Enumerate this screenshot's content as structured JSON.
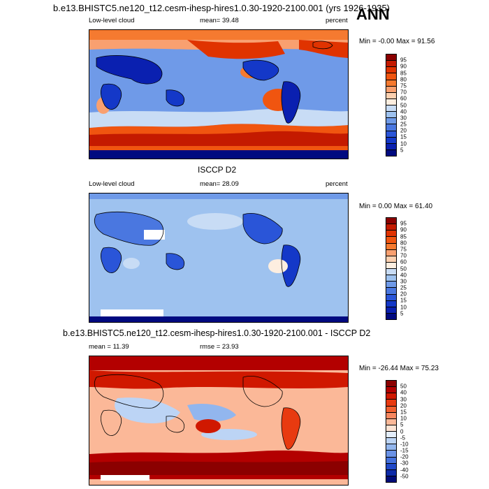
{
  "header": {
    "title": "b.e13.BHISTC5.ne120_t12.cesm-ihesp-hires1.0.30-1920-2100.001 (yrs 1926-1935)",
    "season": "ANN"
  },
  "panels": [
    {
      "id": "model",
      "field": "Low-level cloud",
      "mean_text": "mean=  39.48",
      "units": "percent",
      "minmax": "Min =  -0.00 Max =  91.56",
      "levels": [
        "95",
        "90",
        "85",
        "80",
        "75",
        "70",
        "60",
        "50",
        "40",
        "30",
        "25",
        "20",
        "15",
        "10",
        "5"
      ],
      "colors": [
        "#8b0000",
        "#c41a00",
        "#e03300",
        "#f05510",
        "#f57a30",
        "#f9a070",
        "#fcd0b0",
        "#fdeee0",
        "#c8dcf5",
        "#9ec2ef",
        "#6f9ae8",
        "#4a77e0",
        "#2a55d8",
        "#1438c8",
        "#0a20b0",
        "#000a80"
      ]
    },
    {
      "id": "obs",
      "subtitle": "ISCCP D2",
      "field": "Low-level cloud",
      "mean_text": "mean=  28.09",
      "units": "percent",
      "minmax": "Min =   0.00 Max =  61.40",
      "levels": [
        "95",
        "90",
        "85",
        "80",
        "75",
        "70",
        "60",
        "50",
        "40",
        "30",
        "25",
        "20",
        "15",
        "10",
        "5"
      ],
      "colors": [
        "#8b0000",
        "#c41a00",
        "#e03300",
        "#f05510",
        "#f57a30",
        "#f9a070",
        "#fcd0b0",
        "#fdeee0",
        "#c8dcf5",
        "#9ec2ef",
        "#6f9ae8",
        "#4a77e0",
        "#2a55d8",
        "#1438c8",
        "#0a20b0",
        "#000a80"
      ]
    },
    {
      "id": "diff",
      "subtitle": "b.e13.BHISTC5.ne120_t12.cesm-ihesp-hires1.0.30-1920-2100.001 - ISCCP D2",
      "mean_text": "mean =  11.39",
      "rmse_text": "rmse =  23.93",
      "minmax": "Min = -26.44 Max =  75.23",
      "levels": [
        "50",
        "40",
        "30",
        "20",
        "15",
        "10",
        "5",
        "0",
        "-5",
        "-10",
        "-15",
        "-20",
        "-30",
        "-40",
        "-50"
      ],
      "colors": [
        "#8b0000",
        "#b30000",
        "#d01800",
        "#e83a10",
        "#f26030",
        "#f88860",
        "#fbb898",
        "#fde4d4",
        "#e4eefb",
        "#bcd4f5",
        "#92b6ee",
        "#6a92e6",
        "#4470dc",
        "#2048c8",
        "#0c2aa8",
        "#000c78"
      ]
    }
  ]
}
